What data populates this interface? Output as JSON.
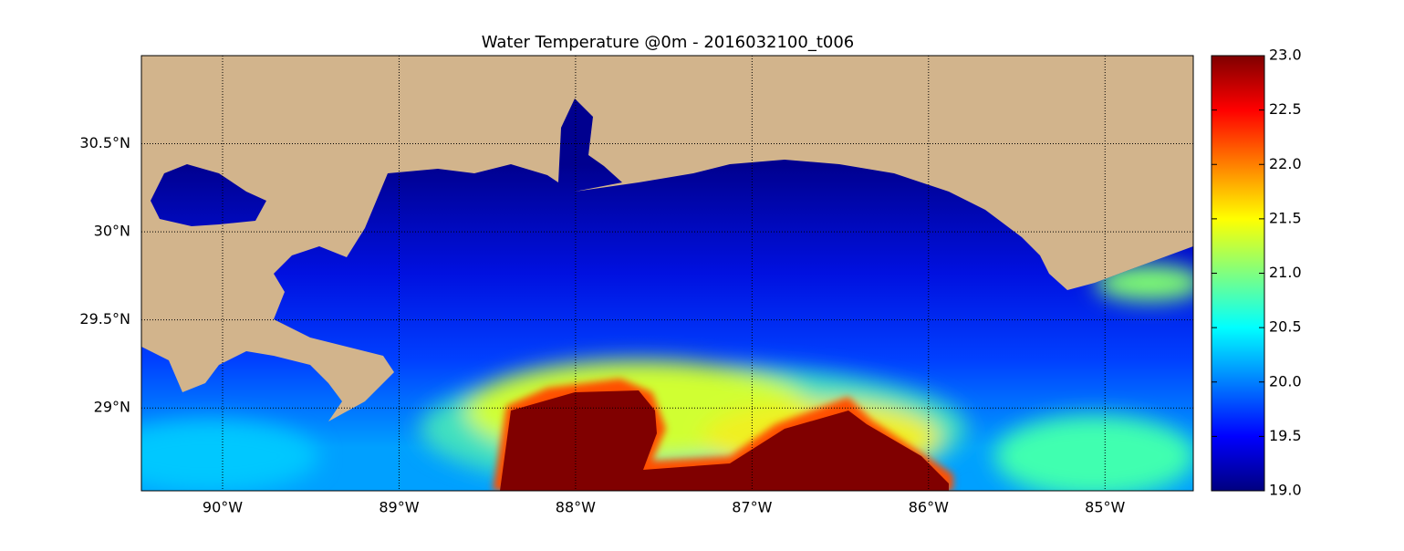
{
  "chart_data": {
    "type": "map",
    "title": "Water Temperature @0m - 2016032100_t006",
    "xlim": [
      -90.46,
      -84.5
    ],
    "ylim": [
      28.53,
      31.0
    ],
    "xticks": [
      {
        "value": -90,
        "label": "90°W"
      },
      {
        "value": -89,
        "label": "89°W"
      },
      {
        "value": -88,
        "label": "88°W"
      },
      {
        "value": -87,
        "label": "87°W"
      },
      {
        "value": -86,
        "label": "86°W"
      },
      {
        "value": -85,
        "label": "85°W"
      }
    ],
    "yticks": [
      {
        "value": 29,
        "label": "29°N"
      },
      {
        "value": 29.5,
        "label": "29.5°N"
      },
      {
        "value": 30,
        "label": "30°N"
      },
      {
        "value": 30.5,
        "label": "30.5°N"
      }
    ],
    "grid": true,
    "colorbar": {
      "colormap": "jet",
      "lim": [
        19.0,
        23.0
      ],
      "ticks": [
        {
          "value": 19,
          "label": "19.0"
        },
        {
          "value": 19.5,
          "label": "19.5"
        },
        {
          "value": 20,
          "label": "20.0"
        },
        {
          "value": 20.5,
          "label": "20.5"
        },
        {
          "value": 21,
          "label": "21.0"
        },
        {
          "value": 21.5,
          "label": "21.5"
        },
        {
          "value": 22,
          "label": "22.0"
        },
        {
          "value": 22.5,
          "label": "22.5"
        },
        {
          "value": 23,
          "label": "23.0"
        }
      ]
    }
  }
}
